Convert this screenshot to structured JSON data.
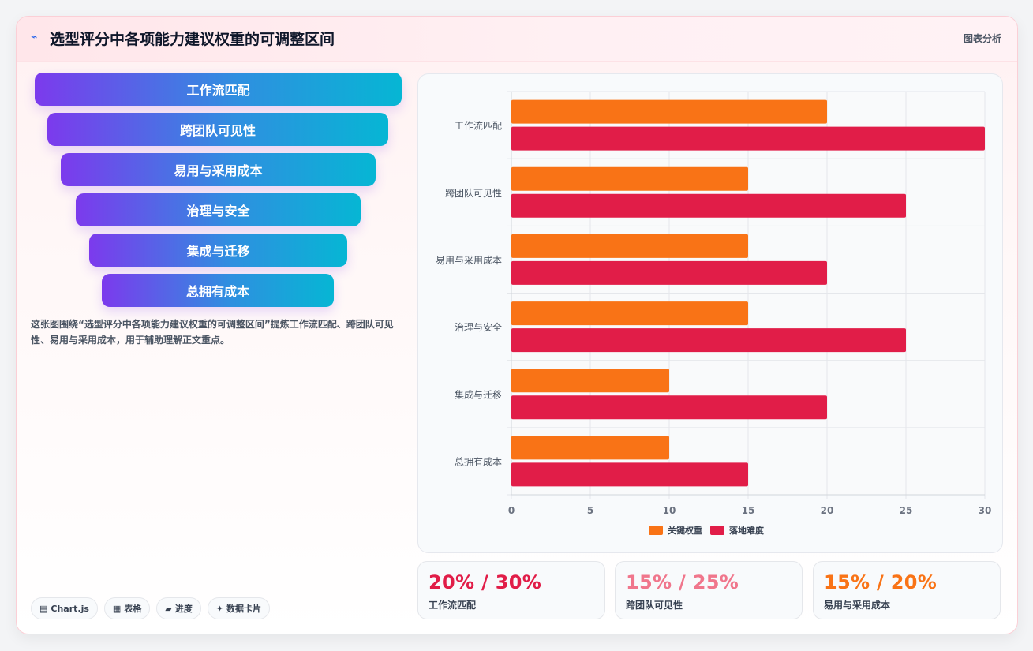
{
  "header": {
    "title_icon": "⌁",
    "title": "选型评分中各项能力建议权重的可调整区间",
    "right_label": "图表分析"
  },
  "funnel": {
    "steps": [
      {
        "label": "工作流匹配"
      },
      {
        "label": "跨团队可见性"
      },
      {
        "label": "易用与采用成本"
      },
      {
        "label": "治理与安全"
      },
      {
        "label": "集成与迁移"
      },
      {
        "label": "总拥有成本"
      }
    ],
    "gradient": [
      "#7c3aed",
      "#06b6d4"
    ],
    "description": "这张图围绕“选型评分中各项能力建议权重的可调整区间”提炼工作流匹配、跨团队可见性、易用与采用成本，用于辅助理解正文重点。"
  },
  "tags": [
    {
      "icon": "▤",
      "label": "Chart.js"
    },
    {
      "icon": "▦",
      "label": "表格"
    },
    {
      "icon": "▰",
      "label": "进度"
    },
    {
      "icon": "✦",
      "label": "数据卡片"
    }
  ],
  "chart_data": {
    "type": "bar",
    "orientation": "horizontal",
    "categories": [
      "工作流匹配",
      "跨团队可见性",
      "易用与采用成本",
      "治理与安全",
      "集成与迁移",
      "总拥有成本"
    ],
    "series": [
      {
        "name": "关键权重",
        "color": "#f97316",
        "values": [
          20,
          15,
          15,
          15,
          10,
          10
        ]
      },
      {
        "name": "落地难度",
        "color": "#e11d48",
        "values": [
          30,
          25,
          20,
          25,
          20,
          15
        ]
      }
    ],
    "xlim": [
      0,
      30
    ],
    "xticks": [
      0,
      5,
      10,
      15,
      20,
      25,
      30
    ],
    "grid": true,
    "legend_position": "bottom"
  },
  "stats": [
    {
      "value": "20% / 30%",
      "label": "工作流匹配",
      "color": "#e11d48"
    },
    {
      "value": "15% / 25%",
      "label": "跨团队可见性",
      "color": "#f0768c"
    },
    {
      "value": "15% / 20%",
      "label": "易用与采用成本",
      "color": "#f97316"
    }
  ]
}
